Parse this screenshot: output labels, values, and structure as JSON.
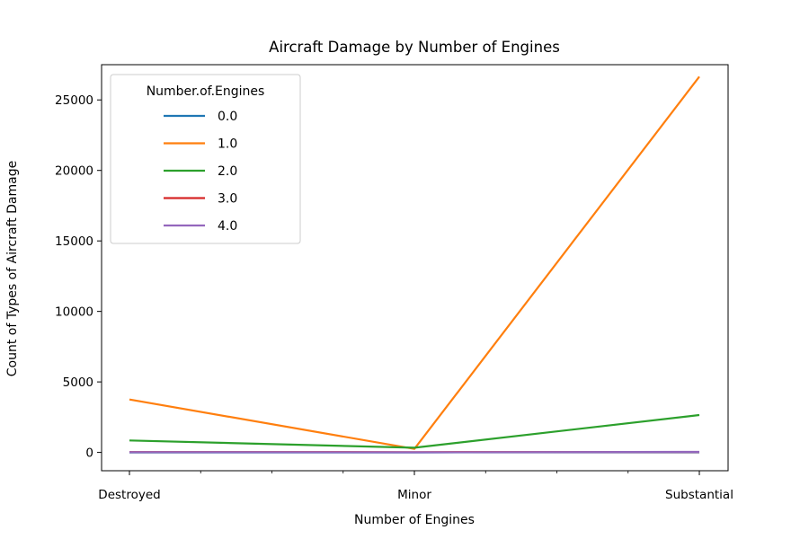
{
  "chart_data": {
    "type": "line",
    "title": "Aircraft Damage by Number of Engines",
    "xlabel": "Number of Engines",
    "ylabel": "Count of Types of Aircraft Damage",
    "categories": [
      "Destroyed",
      "Minor",
      "Substantial"
    ],
    "ylim": [
      -1300,
      27500
    ],
    "yticks": [
      0,
      5000,
      10000,
      15000,
      20000,
      25000
    ],
    "legend": {
      "title": "Number.of.Engines",
      "placement": "top-left"
    },
    "series": [
      {
        "name": "0.0",
        "color": "#1f77b4",
        "values": [
          2,
          1,
          7
        ]
      },
      {
        "name": "1.0",
        "color": "#ff7f0e",
        "values": [
          3750,
          250,
          26650
        ]
      },
      {
        "name": "2.0",
        "color": "#2ca02c",
        "values": [
          850,
          330,
          2650
        ]
      },
      {
        "name": "3.0",
        "color": "#d62728",
        "values": [
          25,
          20,
          30
        ]
      },
      {
        "name": "4.0",
        "color": "#9467bd",
        "values": [
          20,
          5,
          40
        ]
      }
    ]
  }
}
